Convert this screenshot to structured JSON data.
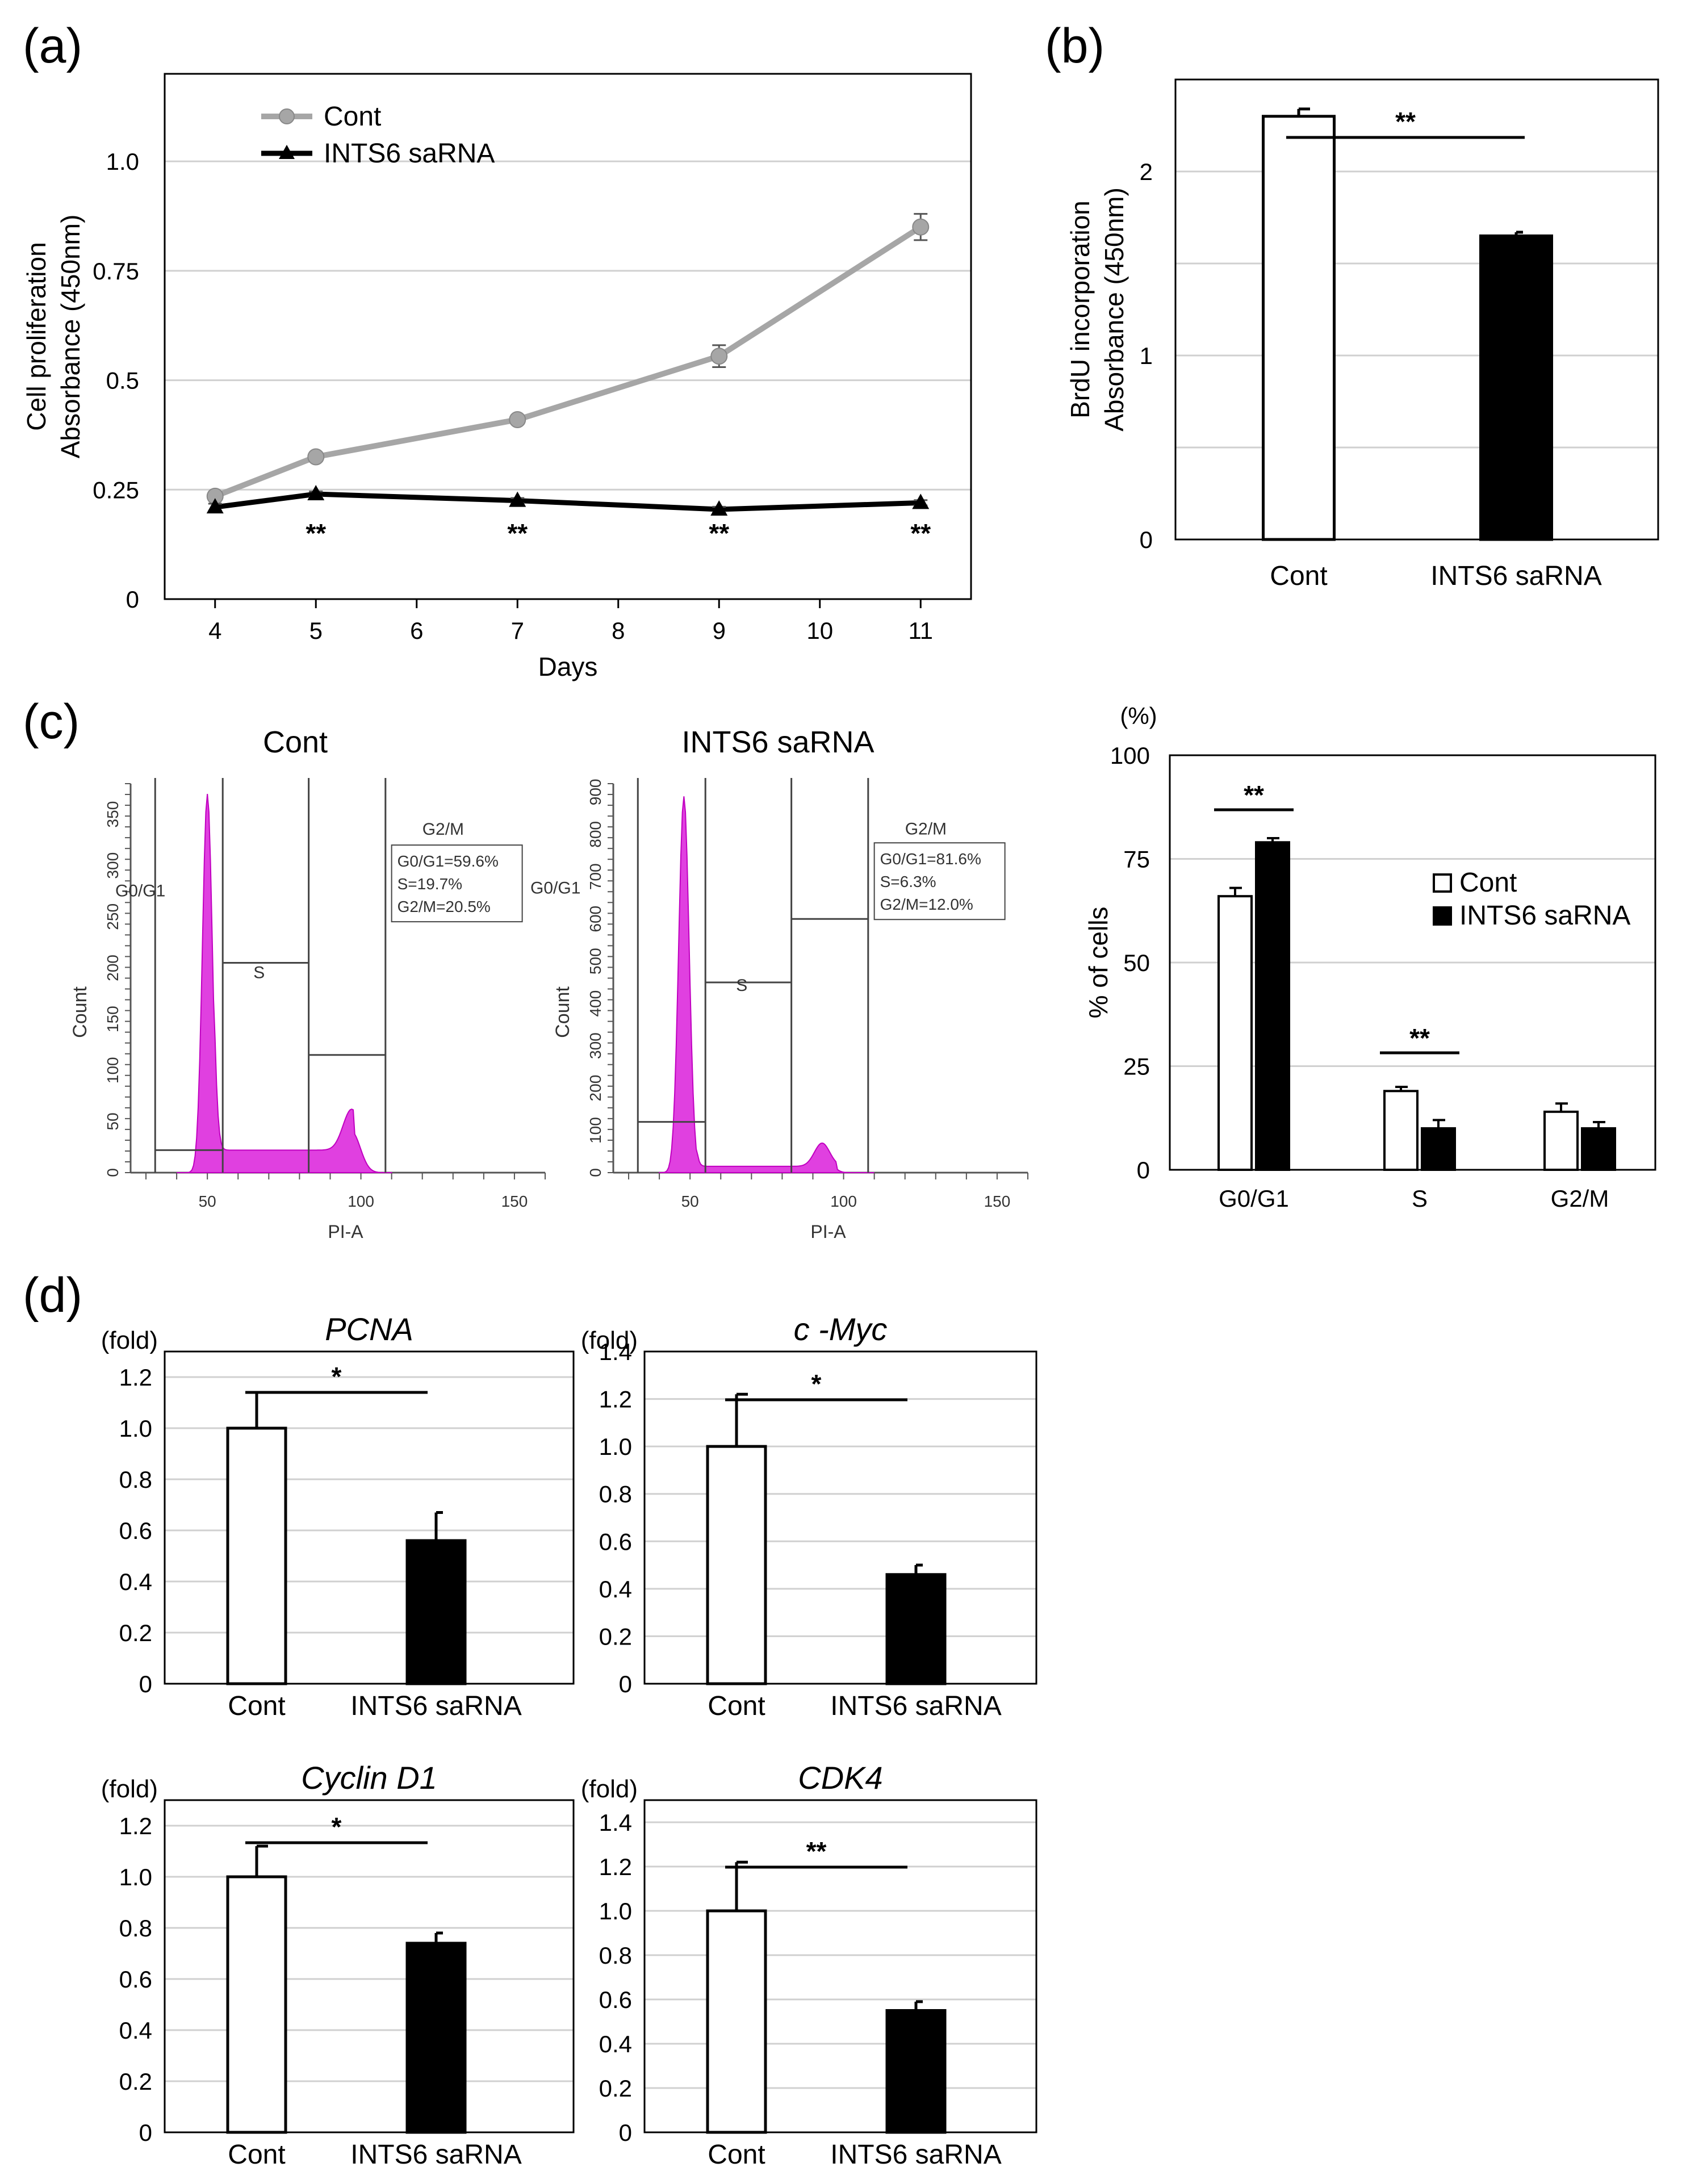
{
  "panels": {
    "a": "(a)",
    "b": "(b)",
    "c": "(c)",
    "d": "(d)"
  },
  "colors": {
    "cont_line": "#a6a6a6",
    "saRNA_line": "#000000",
    "bar_cont": "#ffffff",
    "bar_saRNA": "#000000",
    "histogram": "#e040e0",
    "grid": "#d0d0d0"
  },
  "chart_data": [
    {
      "id": "a",
      "type": "line",
      "ylabel_lines": [
        "Cell proliferation",
        "Absorbance (450nm)"
      ],
      "xlabel": "Days",
      "xlim": [
        3.5,
        11.5
      ],
      "ylim": [
        0,
        1.2
      ],
      "xticks": [
        4,
        5,
        6,
        7,
        8,
        9,
        10,
        11
      ],
      "yticks": [
        0,
        0.25,
        0.5,
        0.75,
        1.0
      ],
      "ytick_labels": [
        "0",
        "0.25",
        "0.5",
        "0.75",
        "1.0"
      ],
      "series": [
        {
          "name": "Cont",
          "x": [
            4,
            5,
            7,
            9,
            11
          ],
          "values": [
            0.235,
            0.325,
            0.41,
            0.555,
            0.85
          ],
          "errors": [
            0.01,
            0.01,
            0.01,
            0.025,
            0.03
          ]
        },
        {
          "name": "INTS6 saRNA",
          "x": [
            4,
            5,
            7,
            9,
            11
          ],
          "values": [
            0.21,
            0.24,
            0.225,
            0.205,
            0.22
          ],
          "errors": [
            0.008,
            0.006,
            0.006,
            0.006,
            0.006
          ]
        }
      ],
      "significance": [
        {
          "x": 5,
          "label": "**"
        },
        {
          "x": 7,
          "label": "**"
        },
        {
          "x": 9,
          "label": "**"
        },
        {
          "x": 11,
          "label": "**"
        }
      ]
    },
    {
      "id": "b",
      "type": "bar",
      "ylabel_lines": [
        "BrdU incorporation",
        "Absorbance (450nm)"
      ],
      "categories": [
        "Cont",
        "INTS6 saRNA"
      ],
      "values": [
        2.3,
        1.65
      ],
      "errors": [
        0.04,
        0.02
      ],
      "ylim": [
        0,
        2.5
      ],
      "yticks": [
        0,
        1,
        2
      ],
      "significance": {
        "label": "**"
      }
    },
    {
      "id": "c-flow-cont",
      "type": "histogram",
      "title": "Cont",
      "xlabel": "PI-A",
      "ylabel": "Count",
      "xticks": [
        50,
        100,
        150
      ],
      "yticks": [
        0,
        50,
        100,
        150,
        200,
        250,
        300,
        350
      ],
      "gate_labels": [
        "G0/G1",
        "S",
        "G2/M"
      ],
      "stats": [
        "G0/G1=59.6%",
        "S=19.7%",
        "G2/M=20.5%"
      ]
    },
    {
      "id": "c-flow-saRNA",
      "type": "histogram",
      "title": "INTS6 saRNA",
      "xlabel": "PI-A",
      "ylabel": "Count",
      "xticks": [
        50,
        100,
        150
      ],
      "yticks": [
        0,
        100,
        200,
        300,
        400,
        500,
        600,
        700,
        800,
        900
      ],
      "gate_labels": [
        "G0/G1",
        "S",
        "G2/M"
      ],
      "stats": [
        "G0/G1=81.6%",
        "S=6.3%",
        "G2/M=12.0%"
      ]
    },
    {
      "id": "c-bar",
      "type": "bar",
      "unit": "(%)",
      "ylabel": "% of cells",
      "categories": [
        "G0/G1",
        "S",
        "G2/M"
      ],
      "ylim": [
        0,
        100
      ],
      "yticks": [
        0,
        25,
        50,
        75,
        100
      ],
      "series": [
        {
          "name": "Cont",
          "values": [
            66,
            19,
            14
          ],
          "errors": [
            2,
            1,
            2
          ]
        },
        {
          "name": "INTS6 saRNA",
          "values": [
            79,
            10,
            10
          ],
          "errors": [
            1,
            2,
            1.5
          ]
        }
      ],
      "significance": [
        {
          "category": "G0/G1",
          "label": "**"
        },
        {
          "category": "S",
          "label": "**"
        }
      ]
    },
    {
      "id": "d-pcna",
      "type": "bar",
      "title": "PCNA",
      "unit": "(fold)",
      "categories": [
        "Cont",
        "INTS6 saRNA"
      ],
      "values": [
        1.0,
        0.56
      ],
      "errors": [
        0.14,
        0.11
      ],
      "ylim": [
        0,
        1.3
      ],
      "yticks": [
        0,
        0.2,
        0.4,
        0.6,
        0.8,
        1.0,
        1.2
      ],
      "ytick_labels": [
        "0",
        "0.2",
        "0.4",
        "0.6",
        "0.8",
        "1.0",
        "1.2"
      ],
      "significance": {
        "label": "*"
      }
    },
    {
      "id": "d-cmyc",
      "type": "bar",
      "title": "c -Myc",
      "unit": "(fold)",
      "categories": [
        "Cont",
        "INTS6 saRNA"
      ],
      "values": [
        1.0,
        0.46
      ],
      "errors": [
        0.22,
        0.04
      ],
      "ylim": [
        0,
        1.4
      ],
      "yticks": [
        0,
        0.2,
        0.4,
        0.6,
        0.8,
        1.0,
        1.2,
        1.4
      ],
      "ytick_labels": [
        "0",
        "0.2",
        "0.4",
        "0.6",
        "0.8",
        "1.0",
        "1.2",
        "1.4"
      ],
      "significance": {
        "label": "*"
      }
    },
    {
      "id": "d-cyclind1",
      "type": "bar",
      "title": "Cyclin D1",
      "unit": "(fold)",
      "categories": [
        "Cont",
        "INTS6 saRNA"
      ],
      "values": [
        1.0,
        0.74
      ],
      "errors": [
        0.12,
        0.04
      ],
      "ylim": [
        0,
        1.3
      ],
      "yticks": [
        0,
        0.2,
        0.4,
        0.6,
        0.8,
        1.0,
        1.2
      ],
      "ytick_labels": [
        "0",
        "0.2",
        "0.4",
        "0.6",
        "0.8",
        "1.0",
        "1.2"
      ],
      "significance": {
        "label": "*"
      }
    },
    {
      "id": "d-cdk4",
      "type": "bar",
      "title": "CDK4",
      "unit": "(fold)",
      "categories": [
        "Cont",
        "INTS6 saRNA"
      ],
      "values": [
        1.0,
        0.55
      ],
      "errors": [
        0.22,
        0.04
      ],
      "ylim": [
        0,
        1.5
      ],
      "yticks": [
        0,
        0.2,
        0.4,
        0.6,
        0.8,
        1.0,
        1.2,
        1.4
      ],
      "ytick_labels": [
        "0",
        "0.2",
        "0.4",
        "0.6",
        "0.8",
        "1.0",
        "1.2",
        "1.4"
      ],
      "significance": {
        "label": "**"
      }
    }
  ]
}
